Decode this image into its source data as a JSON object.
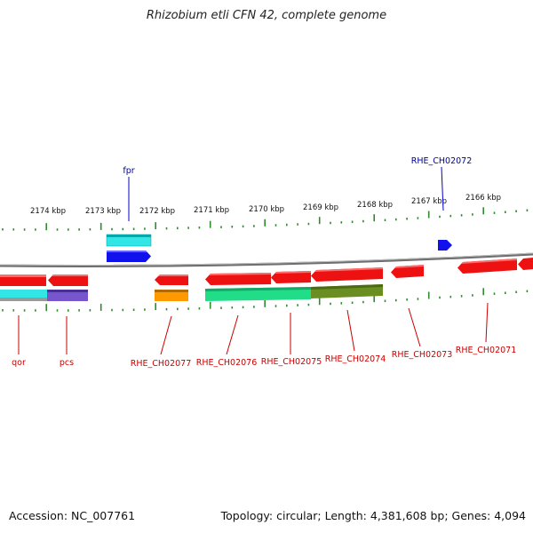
{
  "title": "Rhizobium etli CFN 42, complete genome",
  "accession": "Accession: NC_007761",
  "summary": "Topology: circular; Length: 4,381,608 bp; Genes: 4,094",
  "colors": {
    "backbone": "#7f7f7f",
    "tick": "#2e8b2e",
    "gene_red": "#ee1111",
    "gene_blue": "#1111ee",
    "label_red": "#cc0000",
    "label_blue": "#000099",
    "cyan": "#33e6e6",
    "purple": "#7755cc",
    "orange": "#ff9900",
    "green_teal": "#22dd88",
    "olive": "#6b8e23"
  },
  "scale_labels": [
    "2174 kbp",
    "2173 kbp",
    "2172 kbp",
    "2171 kbp",
    "2170 kbp",
    "2169 kbp",
    "2168 kbp",
    "2167 kbp",
    "2166 kbp"
  ],
  "top_labels": [
    "fpr",
    "RHE_CH02072"
  ],
  "bottom_labels": [
    "qor",
    "pcs",
    "RHE_CH02077",
    "RHE_CH02076",
    "RHE_CH02075",
    "RHE_CH02074",
    "RHE_CH02073",
    "RHE_CH02071"
  ]
}
